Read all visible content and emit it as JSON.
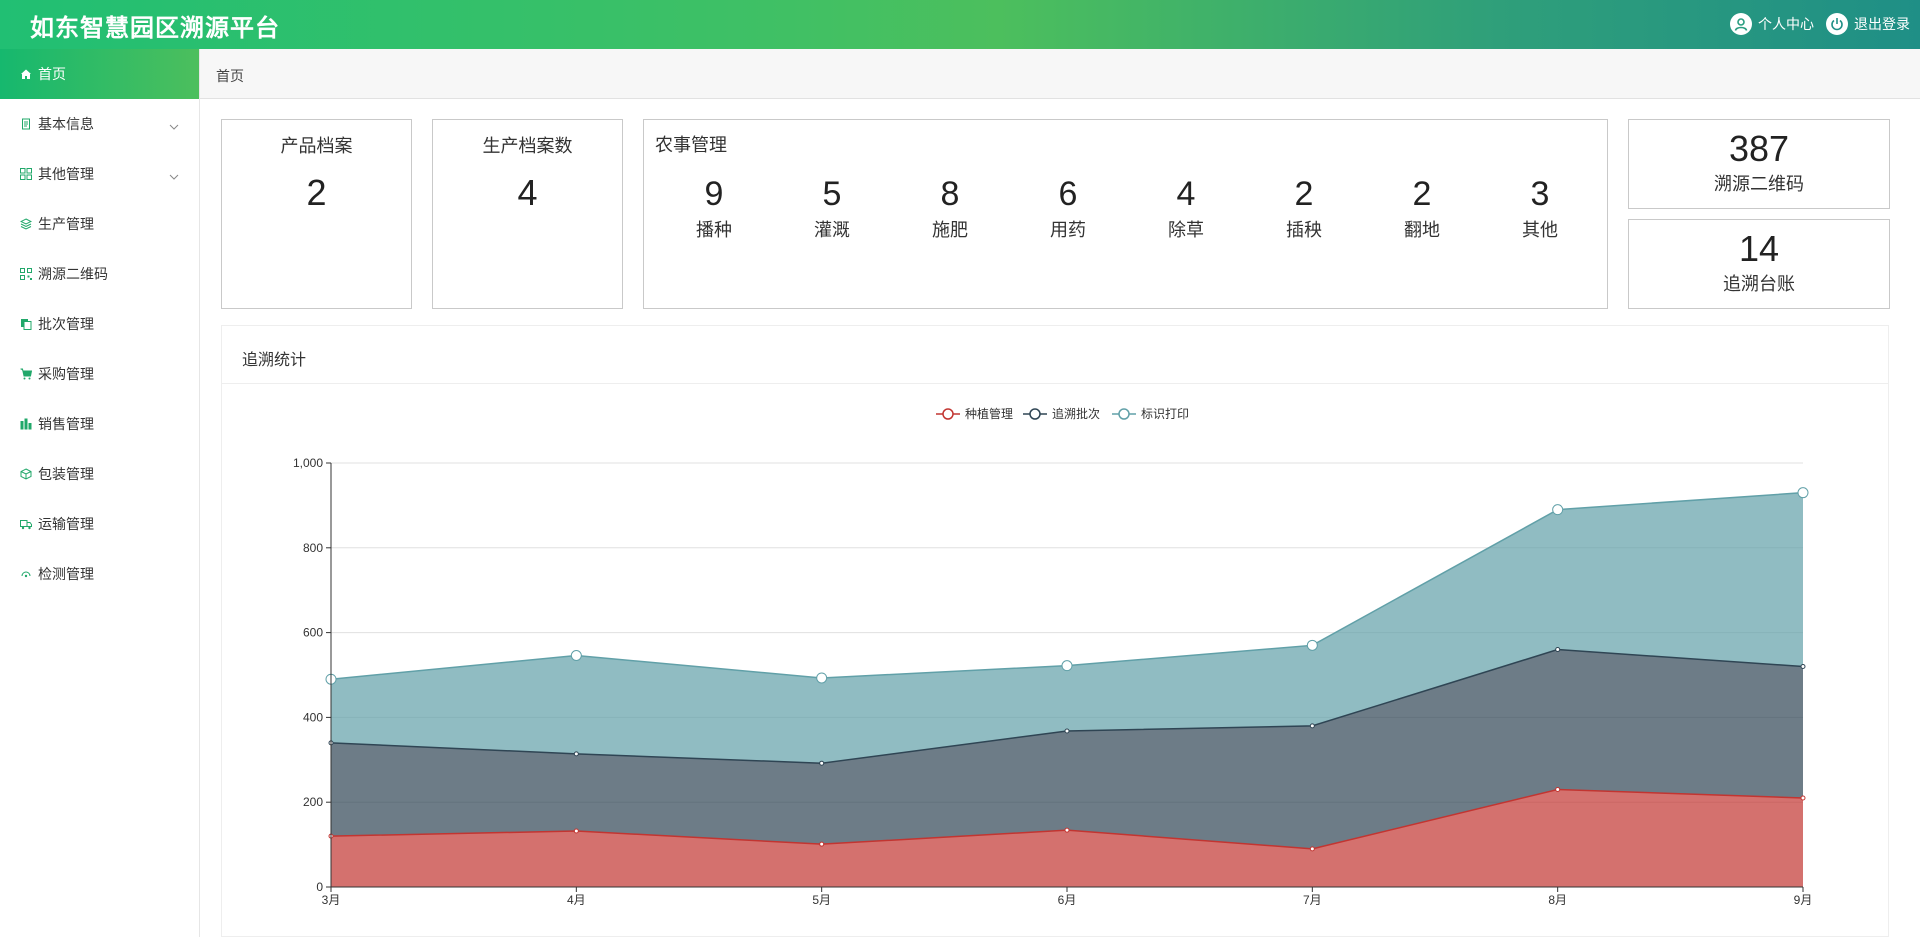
{
  "header": {
    "title": "如东智慧园区溯源平台",
    "user_center": "个人中心",
    "logout": "退出登录"
  },
  "breadcrumb": "首页",
  "sidebar": {
    "items": [
      {
        "label": "首页",
        "icon": "home-icon",
        "active": true
      },
      {
        "label": "基本信息",
        "icon": "document-icon",
        "expandable": true
      },
      {
        "label": "其他管理",
        "icon": "grid-icon",
        "expandable": true
      },
      {
        "label": "生产管理",
        "icon": "layers-icon"
      },
      {
        "label": "溯源二维码",
        "icon": "qrcode-icon"
      },
      {
        "label": "批次管理",
        "icon": "copy-icon"
      },
      {
        "label": "采购管理",
        "icon": "cart-icon"
      },
      {
        "label": "销售管理",
        "icon": "bar-chart-icon"
      },
      {
        "label": "包装管理",
        "icon": "box-icon"
      },
      {
        "label": "运输管理",
        "icon": "truck-icon"
      },
      {
        "label": "检测管理",
        "icon": "detect-icon"
      }
    ]
  },
  "stats": {
    "product_archive": {
      "label": "产品档案",
      "value": "2"
    },
    "production_archive": {
      "label": "生产档案数",
      "value": "4"
    },
    "farm": {
      "title": "农事管理",
      "items": [
        {
          "value": "9",
          "label": "播种"
        },
        {
          "value": "5",
          "label": "灌溉"
        },
        {
          "value": "8",
          "label": "施肥"
        },
        {
          "value": "6",
          "label": "用药"
        },
        {
          "value": "4",
          "label": "除草"
        },
        {
          "value": "2",
          "label": "插秧"
        },
        {
          "value": "2",
          "label": "翻地"
        },
        {
          "value": "3",
          "label": "其他"
        }
      ]
    },
    "qrcode": {
      "value": "387",
      "label": "溯源二维码"
    },
    "ledger": {
      "value": "14",
      "label": "追溯台账"
    }
  },
  "panel_title": "追溯统计",
  "colors": {
    "series1": "#c23531",
    "series2": "#2f4554",
    "series3": "#61a0a8",
    "accent": "#21bf73"
  },
  "chart_data": {
    "type": "area",
    "stacked": true,
    "categories": [
      "3月",
      "4月",
      "5月",
      "6月",
      "7月",
      "8月",
      "9月"
    ],
    "series": [
      {
        "name": "种植管理",
        "values": [
          120,
          132,
          101,
          134,
          90,
          230,
          210
        ]
      },
      {
        "name": "追溯批次",
        "values": [
          220,
          182,
          191,
          234,
          290,
          330,
          310
        ]
      },
      {
        "name": "标识打印",
        "values": [
          150,
          232,
          201,
          154,
          190,
          330,
          410
        ]
      }
    ],
    "ylim": [
      0,
      1000
    ],
    "yticks": [
      "0",
      "200",
      "400",
      "600",
      "800",
      "1,000"
    ],
    "grid": true,
    "legend": "top-center"
  }
}
